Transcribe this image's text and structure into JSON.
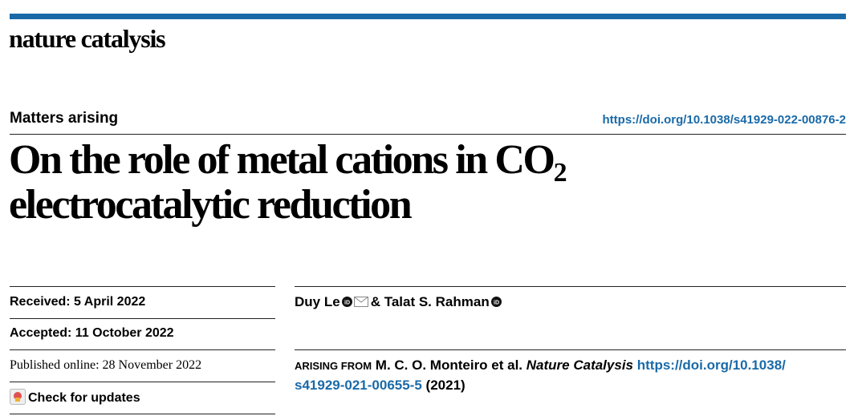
{
  "header": {
    "journal": "nature catalysis",
    "section": "Matters arising",
    "doi": "https://doi.org/10.1038/s41929-022-00876-2"
  },
  "title": {
    "line1": "On the role of metal cations in CO",
    "subscript": "2",
    "line2": "electrocatalytic reduction"
  },
  "dates": {
    "received": "Received: 5 April 2022",
    "accepted": "Accepted: 11 October 2022",
    "published": "Published online: 28 November 2022",
    "check_updates": "Check for updates"
  },
  "authors": {
    "first": "Duy Le",
    "separator": "&",
    "second": "Talat S. Rahman"
  },
  "arising_from": {
    "label": "ARISING FROM",
    "authors": "M. C. O. Monteiro et al.",
    "journal": "Nature Catalysis",
    "doi_part1": "https://doi.org/10.1038/",
    "doi_part2": "s41929-021-00655-5",
    "year": "(2021)"
  }
}
